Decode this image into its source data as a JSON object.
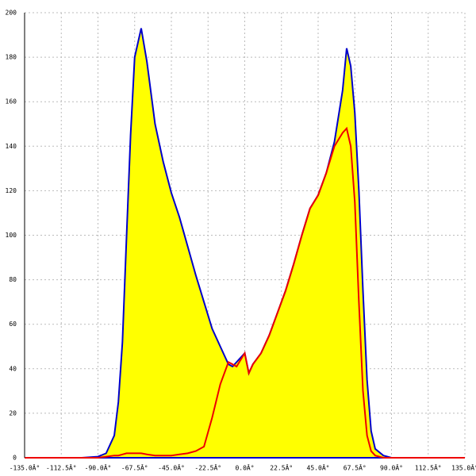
{
  "chart_data": {
    "type": "area",
    "x": [
      -135,
      -100,
      -90,
      -85,
      -80,
      -77.5,
      -75,
      -72.5,
      -70,
      -67.5,
      -63.5,
      -60,
      -55,
      -50,
      -45,
      -40,
      -35,
      -30,
      -25,
      -20,
      -15,
      -10,
      -7.5,
      -5,
      -2.5,
      0,
      2.5,
      5,
      10,
      15,
      20,
      25,
      30,
      35,
      40,
      45,
      50,
      55,
      60,
      62.5,
      65,
      67.5,
      70,
      72.5,
      75,
      77.5,
      80,
      85,
      90,
      100,
      135
    ],
    "series": [
      {
        "color": "#0000cc",
        "fill": "#ffff00",
        "values": [
          0,
          0,
          0.5,
          2,
          10,
          25,
          52,
          99,
          145,
          180,
          193,
          178,
          150,
          133,
          119,
          108,
          95,
          82,
          70,
          58,
          50,
          42,
          41,
          43,
          45,
          47,
          38,
          42,
          47,
          55,
          65,
          75,
          87,
          100,
          112,
          118,
          128,
          142,
          165,
          184,
          176,
          155,
          120,
          75,
          35,
          12,
          4,
          1,
          0,
          0,
          0
        ]
      },
      {
        "color": "#ee0000",
        "values": [
          0,
          0,
          0,
          0.5,
          1,
          1,
          1.5,
          2,
          2,
          2,
          2,
          1.5,
          1,
          1,
          1,
          1.5,
          2,
          3,
          5,
          18,
          33,
          43,
          42,
          41,
          44,
          47,
          38,
          42,
          47,
          55,
          65,
          75,
          87,
          100,
          112,
          118,
          128,
          140,
          146,
          148,
          140,
          115,
          70,
          30,
          10,
          3,
          1,
          0,
          0,
          0,
          0
        ]
      }
    ],
    "xlim": [
      -135,
      135
    ],
    "xticks": [
      {
        "value": -135,
        "label": "-135.0Â°"
      },
      {
        "value": -112.5,
        "label": "-112.5Â°"
      },
      {
        "value": -90,
        "label": "-90.0Â°"
      },
      {
        "value": -67.5,
        "label": "-67.5Â°"
      },
      {
        "value": -45,
        "label": "-45.0Â°"
      },
      {
        "value": -22.5,
        "label": "-22.5Â°"
      },
      {
        "value": 0,
        "label": "0.0Â°"
      },
      {
        "value": 22.5,
        "label": "22.5Â°"
      },
      {
        "value": 45,
        "label": "45.0Â°"
      },
      {
        "value": 67.5,
        "label": "67.5Â°"
      },
      {
        "value": 90,
        "label": "90.0Â°"
      },
      {
        "value": 112.5,
        "label": "112.5Â°"
      },
      {
        "value": 135,
        "label": "135.0Â°"
      }
    ],
    "ylim": [
      0,
      200
    ],
    "yticks": [
      0,
      20,
      40,
      60,
      80,
      100,
      120,
      140,
      160,
      180,
      200
    ],
    "grid": true
  }
}
